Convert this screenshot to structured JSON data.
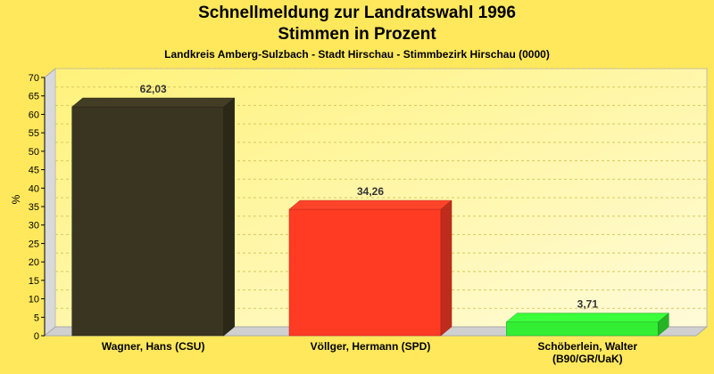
{
  "chart_data": {
    "type": "bar",
    "title": "Schnellmeldung zur Landratswahl 1996",
    "subtitle": "Stimmen in Prozent",
    "caption": "Landkreis Amberg-Sulzbach - Stadt Hirschau - Stimmbezirk Hirschau (0000)",
    "ylabel": "%",
    "xlabel": "",
    "ylim": [
      0,
      70
    ],
    "ytick_step": 5,
    "grid": true,
    "legend": "none",
    "categories": [
      [
        "Wagner, Hans (CSU)"
      ],
      [
        "Völlger, Hermann (SPD)"
      ],
      [
        "Schöberlein, Walter",
        "(B90/GR/UaK)"
      ]
    ],
    "values": [
      62.03,
      34.26,
      3.71
    ],
    "value_labels": [
      "62,03",
      "34,26",
      "3,71"
    ],
    "colors": [
      "#3a3520",
      "#ff3b24",
      "#33ee33"
    ]
  }
}
